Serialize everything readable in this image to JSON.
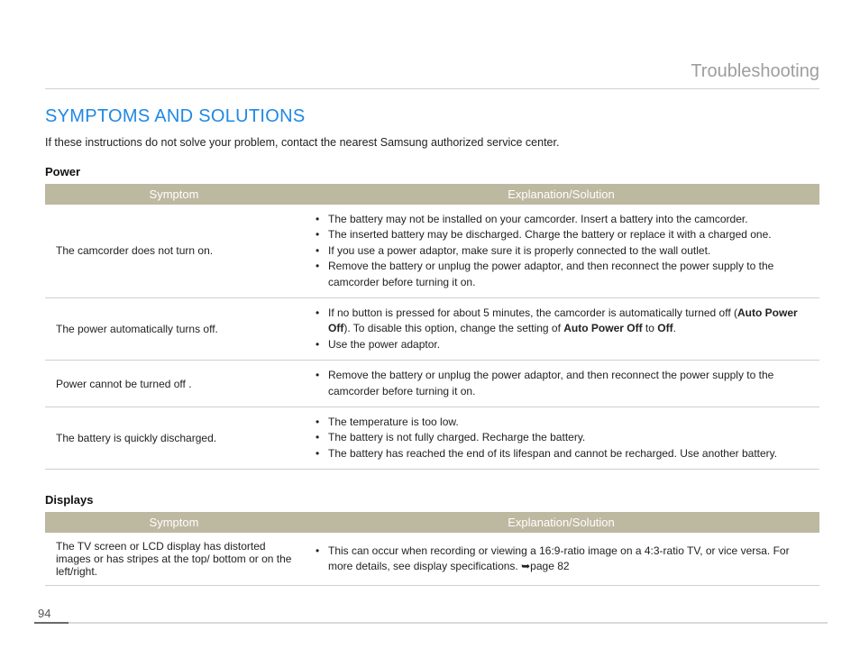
{
  "page": {
    "number": "94",
    "corner_title": "Troubleshooting",
    "section_heading": "SYMPTOMS AND SOLUTIONS",
    "intro_text": "If these instructions do not solve your problem, contact the nearest Samsung authorized service center."
  },
  "colors": {
    "heading": "#1e88e5",
    "corner": "#9e9e9e",
    "th_bg": "#bdb8a0",
    "th_text": "#ffffff",
    "row_border": "#cfcfcf",
    "pagebar_dark": "#6a6a6a",
    "pagebar_light": "#d9d9d9"
  },
  "tables": {
    "power": {
      "subheading": "Power",
      "headers": {
        "symptom": "Symptom",
        "solution": "Explanation/Solution"
      },
      "col_widths": [
        "286px",
        "auto"
      ],
      "rows": [
        {
          "symptom": "The camcorder does not turn on.",
          "items": [
            "The battery may not be installed on your camcorder. Insert a battery into the camcorder.",
            "The inserted battery may be discharged. Charge the battery or replace it with a charged one.",
            "If you use a power adaptor, make sure it is properly connected to the wall outlet.",
            "Remove the battery or unplug the power adaptor, and then reconnect the power supply to the camcorder before turning it on."
          ]
        },
        {
          "symptom": "The power automatically turns off.",
          "items_html": [
            "If no button is pressed for about 5 minutes, the camcorder is automatically turned off (<strong>Auto Power Off</strong>). To disable this option, change the setting of <strong>Auto Power Off</strong> to <strong>Off</strong>.",
            "Use the power adaptor."
          ]
        },
        {
          "symptom": "Power cannot be turned off .",
          "items": [
            "Remove the battery or unplug the power adaptor, and then reconnect the power supply to the camcorder before turning it on."
          ]
        },
        {
          "symptom": "The battery is quickly discharged.",
          "items": [
            "The temperature is too low.",
            "The battery is not fully charged. Recharge the battery.",
            "The battery has reached the end of its lifespan and cannot be recharged. Use another battery."
          ]
        }
      ]
    },
    "displays": {
      "subheading": "Displays",
      "headers": {
        "symptom": "Symptom",
        "solution": "Explanation/Solution"
      },
      "col_widths": [
        "286px",
        "auto"
      ],
      "rows": [
        {
          "symptom": "The TV screen or LCD display has distorted images or has stripes at the top/ bottom or on the left/right.",
          "items_html": [
            "This can occur when recording or viewing a 16:9-ratio image on a 4:3-ratio TV, or vice versa. For more details, see display specifications. <span class='arrow'>➥</span>page 82"
          ]
        }
      ]
    }
  }
}
